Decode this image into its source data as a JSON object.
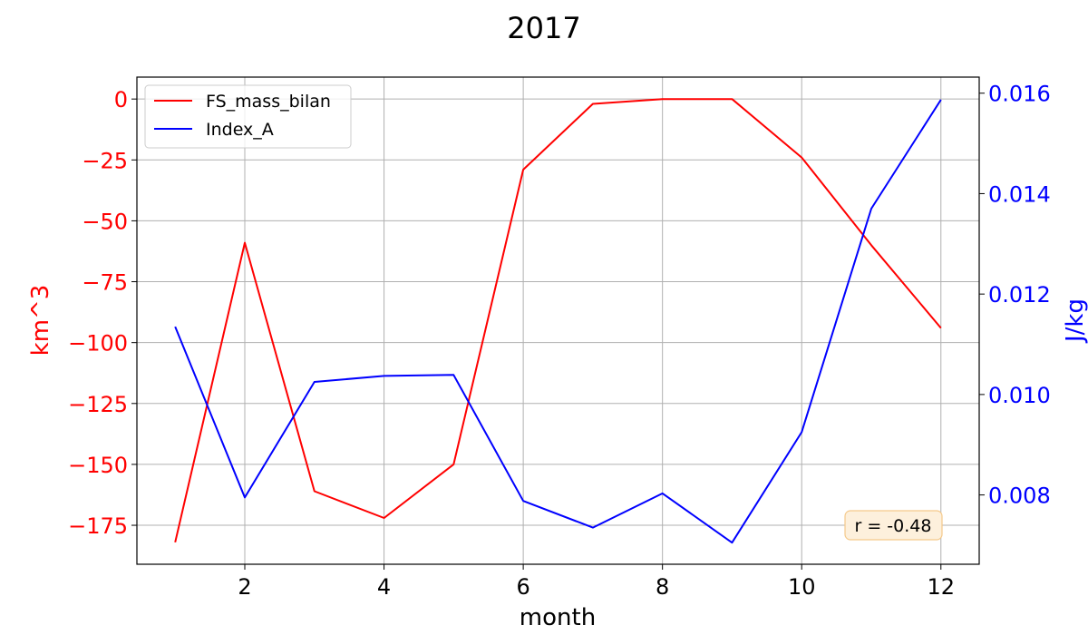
{
  "chart_data": {
    "type": "line",
    "title": "2017",
    "xlabel": "month",
    "ylabel_left": "km^3",
    "ylabel_right": "J/kg",
    "x": [
      1,
      2,
      3,
      4,
      5,
      6,
      7,
      8,
      9,
      10,
      11,
      12
    ],
    "xlim": [
      0.45,
      12.55
    ],
    "xticks": [
      2,
      4,
      6,
      8,
      10,
      12
    ],
    "xtick_labels": [
      "2",
      "4",
      "6",
      "8",
      "10",
      "12"
    ],
    "ylim_left": [
      -191,
      9
    ],
    "yticks_left": [
      0,
      -25,
      -50,
      -75,
      -100,
      -125,
      -150,
      -175
    ],
    "ytick_labels_left": [
      "0",
      "−25",
      "−50",
      "−75",
      "−100",
      "−125",
      "−150",
      "−175"
    ],
    "ylim_right": [
      0.00662,
      0.01632
    ],
    "yticks_right": [
      0.008,
      0.01,
      0.012,
      0.014,
      0.016
    ],
    "ytick_labels_right": [
      "0.008",
      "0.010",
      "0.012",
      "0.014",
      "0.016"
    ],
    "grid": true,
    "legend_position": "top-left",
    "series": [
      {
        "name": "FS_mass_bilan",
        "axis": "left",
        "color": "#ff0000",
        "values": [
          -182,
          -59,
          -161,
          -172,
          -150,
          -29,
          -2,
          0,
          0,
          -24,
          -60,
          -94
        ]
      },
      {
        "name": "Index_A",
        "axis": "right",
        "color": "#0000ff",
        "values": [
          0.01135,
          0.00795,
          0.01025,
          0.01037,
          0.01039,
          0.00788,
          0.00735,
          0.00803,
          0.00705,
          0.00925,
          0.0137,
          0.01587
        ]
      }
    ],
    "annotation": {
      "text": "r = -0.48",
      "position": "bottom-right",
      "box_fill": "#fdf0dc",
      "box_stroke": "#f5c98a"
    }
  }
}
